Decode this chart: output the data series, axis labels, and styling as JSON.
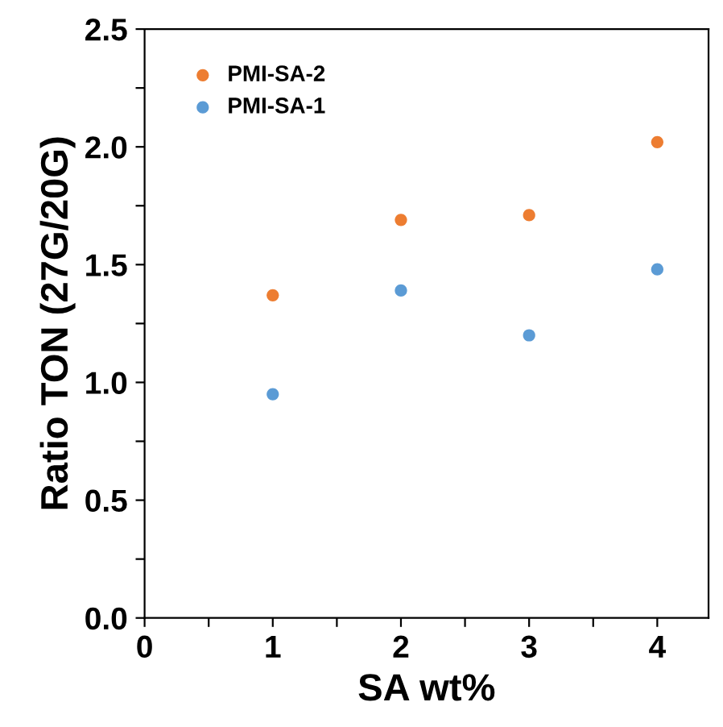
{
  "chart_data": {
    "type": "scatter",
    "xlabel": "SA wt%",
    "ylabel": "Ratio TON (27G/20G)",
    "x": [
      1,
      2,
      3,
      4
    ],
    "series": [
      {
        "name": "PMI-SA-2",
        "color": "#ed7d31",
        "values": [
          1.37,
          1.69,
          1.71,
          2.02
        ]
      },
      {
        "name": "PMI-SA-1",
        "color": "#5b9bd5",
        "values": [
          0.95,
          1.39,
          1.2,
          1.48
        ]
      }
    ],
    "xlim": [
      0,
      4.4
    ],
    "xticks": [
      0,
      {
        "value": 0.5,
        "label": null
      },
      1,
      {
        "value": 1.5,
        "label": null
      },
      2,
      {
        "value": 2.5,
        "label": null
      },
      3,
      {
        "value": 3.5,
        "label": null
      },
      4
    ],
    "ylim": [
      0,
      2.5
    ],
    "yticks": [
      {
        "value": 0,
        "label": "0.0"
      },
      {
        "value": 0.25,
        "label": null
      },
      {
        "value": 0.5,
        "label": "0.5"
      },
      {
        "value": 0.75,
        "label": null
      },
      {
        "value": 1,
        "label": "1.0"
      },
      {
        "value": 1.25,
        "label": null
      },
      {
        "value": 1.5,
        "label": "1.5"
      },
      {
        "value": 1.75,
        "label": null
      },
      {
        "value": 2,
        "label": "2.0"
      },
      {
        "value": 2.25,
        "label": null
      },
      {
        "value": 2.5,
        "label": "2.5"
      }
    ],
    "grid": false,
    "legend": "top left",
    "marker": "circle"
  }
}
